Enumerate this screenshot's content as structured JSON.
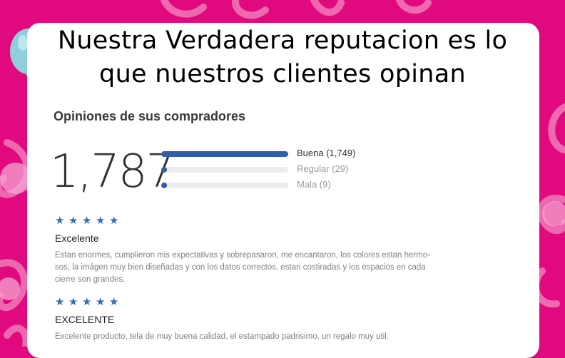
{
  "header": {
    "headline_line1": "Nuestra Verdadera reputacion es lo",
    "headline_line2": "que nuestros clientes opinan"
  },
  "reviews_summary": {
    "title": "Opiniones de sus compradores",
    "total": "1,787",
    "breakdown": [
      {
        "label": "Buena (1,749)",
        "count": 1749,
        "active": true
      },
      {
        "label": "Regular (29)",
        "count": 29,
        "active": false
      },
      {
        "label": "Mala (9)",
        "count": 9,
        "active": false
      }
    ]
  },
  "reviews": [
    {
      "stars": 5,
      "title": "Excelente",
      "body": "Estan enormes, cumplieron mis expectativas y sobrepasaron, me encantaron, los colores estan hermo-\nsos, la imágen muy bien diseñadas y con los datos correctos, estan costiradas y los espacios en cada\ncierre son grandes."
    },
    {
      "stars": 5,
      "title": "EXCELENTE",
      "body": "Excelente producto, tela de muy buena calidad, el estampado padrisimo, un regalo muy util."
    }
  ],
  "colors": {
    "background": "#e0097d",
    "accent": "#2f5fa6",
    "star": "#2f6fb6"
  },
  "icons": {
    "balloon": "balloon-icon",
    "star": "star-icon"
  }
}
